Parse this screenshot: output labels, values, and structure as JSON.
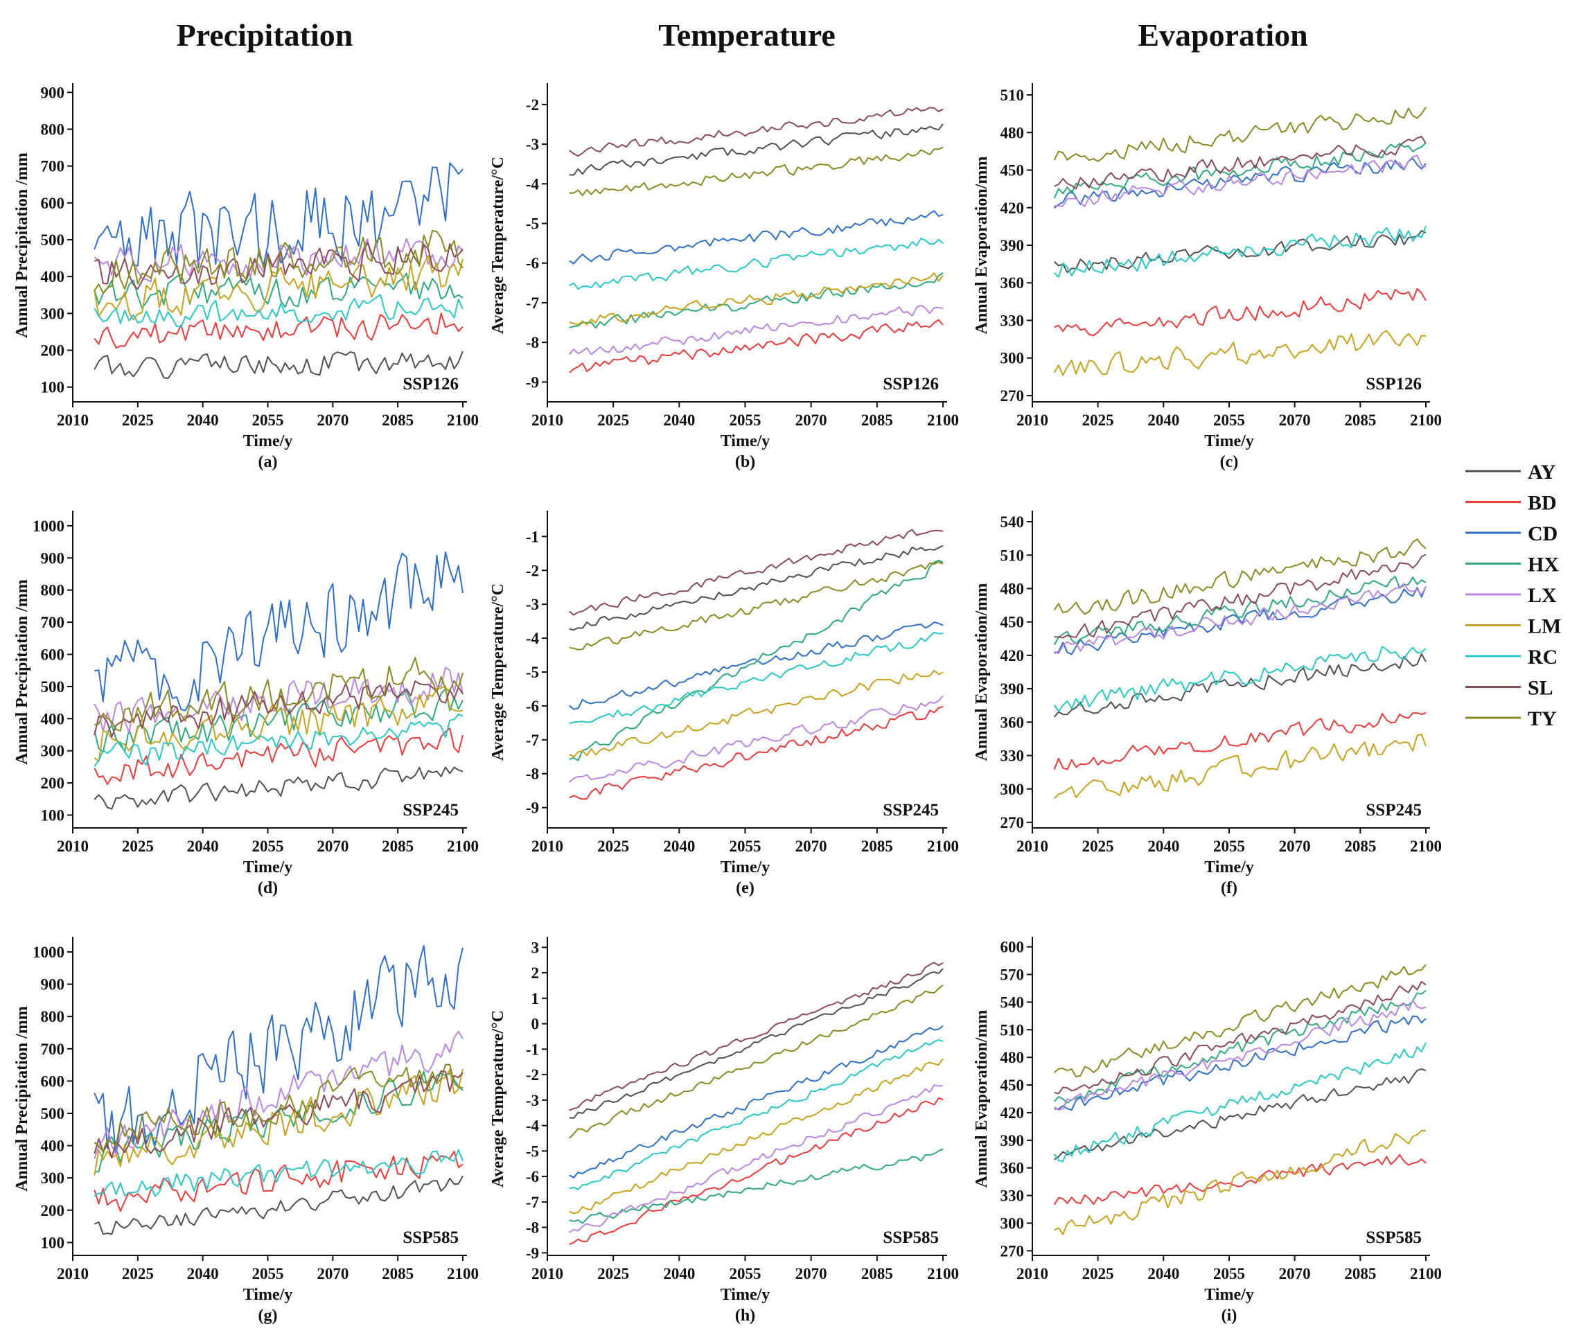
{
  "columns": [
    "Precipitation",
    "Temperature",
    "Evaporation"
  ],
  "legend": [
    {
      "code": "AY",
      "color": "#505050"
    },
    {
      "code": "BD",
      "color": "#ec3a3a"
    },
    {
      "code": "CD",
      "color": "#2f6fc8"
    },
    {
      "code": "HX",
      "color": "#2eaa7a"
    },
    {
      "code": "LX",
      "color": "#b987e3"
    },
    {
      "code": "LM",
      "color": "#c9a21d"
    },
    {
      "code": "RC",
      "color": "#28c8c8"
    },
    {
      "code": "SL",
      "color": "#8a4a56"
    },
    {
      "code": "TY",
      "color": "#8a8a22"
    }
  ],
  "chart_data": [
    {
      "id": "a",
      "type": "line",
      "scenario": "SSP126",
      "variable": "precipitation",
      "xlabel": "Time/y",
      "ylabel": "Annual Precipitation /mm",
      "xticks": [
        2010,
        2025,
        2040,
        2055,
        2070,
        2085,
        2100
      ],
      "yticks": [
        100,
        200,
        300,
        400,
        500,
        600,
        700,
        800,
        900
      ],
      "xlim": [
        2010,
        2100
      ],
      "ylim": [
        60,
        910
      ],
      "series": [
        {
          "name": "AY",
          "start": 150,
          "end": 170,
          "noise": 38,
          "seed": 1
        },
        {
          "name": "BD",
          "start": 230,
          "end": 280,
          "noise": 45,
          "seed": 2
        },
        {
          "name": "CD",
          "start": 450,
          "end": 620,
          "noise": 150,
          "seed": 3
        },
        {
          "name": "HX",
          "start": 350,
          "end": 380,
          "noise": 55,
          "seed": 4
        },
        {
          "name": "LX",
          "start": 430,
          "end": 460,
          "noise": 60,
          "seed": 5
        },
        {
          "name": "LM",
          "start": 330,
          "end": 410,
          "noise": 65,
          "seed": 6
        },
        {
          "name": "RC",
          "start": 290,
          "end": 320,
          "noise": 40,
          "seed": 7
        },
        {
          "name": "SL",
          "start": 400,
          "end": 460,
          "noise": 60,
          "seed": 8
        },
        {
          "name": "TY",
          "start": 410,
          "end": 480,
          "noise": 70,
          "seed": 9
        }
      ]
    },
    {
      "id": "b",
      "type": "line",
      "scenario": "SSP126",
      "variable": "temperature",
      "xlabel": "Time/y",
      "ylabel": "Average Temperature/°C",
      "xticks": [
        2010,
        2025,
        2040,
        2055,
        2070,
        2085,
        2100
      ],
      "yticks": [
        -9,
        -8,
        -7,
        -6,
        -5,
        -4,
        -3,
        -2
      ],
      "xlim": [
        2010,
        2100
      ],
      "ylim": [
        -9.5,
        -1.6
      ],
      "series": [
        {
          "name": "AY",
          "start": -3.7,
          "end": -2.55,
          "noise": 0.15,
          "seed": 11
        },
        {
          "name": "BD",
          "start": -8.7,
          "end": -7.5,
          "noise": 0.18,
          "seed": 12
        },
        {
          "name": "CD",
          "start": -5.9,
          "end": -4.8,
          "noise": 0.17,
          "seed": 13
        },
        {
          "name": "HX",
          "start": -7.6,
          "end": -6.4,
          "noise": 0.18,
          "seed": 14
        },
        {
          "name": "LX",
          "start": -8.3,
          "end": -7.1,
          "noise": 0.18,
          "seed": 15
        },
        {
          "name": "LM",
          "start": -7.5,
          "end": -6.35,
          "noise": 0.18,
          "seed": 16
        },
        {
          "name": "RC",
          "start": -6.6,
          "end": -5.4,
          "noise": 0.18,
          "seed": 17
        },
        {
          "name": "SL",
          "start": -3.2,
          "end": -2.1,
          "noise": 0.15,
          "seed": 18
        },
        {
          "name": "TY",
          "start": -4.3,
          "end": -3.2,
          "noise": 0.17,
          "seed": 19
        }
      ]
    },
    {
      "id": "c",
      "type": "line",
      "scenario": "SSP126",
      "variable": "evaporation",
      "xlabel": "Time/y",
      "ylabel": "Annual Evaporation/mm",
      "xticks": [
        2010,
        2025,
        2040,
        2055,
        2070,
        2085,
        2100
      ],
      "yticks": [
        270,
        300,
        330,
        360,
        390,
        420,
        450,
        480,
        510
      ],
      "xlim": [
        2010,
        2100
      ],
      "ylim": [
        265,
        515
      ],
      "series": [
        {
          "name": "AY",
          "start": 372,
          "end": 397,
          "noise": 8,
          "seed": 21
        },
        {
          "name": "BD",
          "start": 318,
          "end": 352,
          "noise": 9,
          "seed": 22
        },
        {
          "name": "CD",
          "start": 425,
          "end": 458,
          "noise": 8,
          "seed": 23
        },
        {
          "name": "HX",
          "start": 432,
          "end": 468,
          "noise": 8,
          "seed": 24
        },
        {
          "name": "LX",
          "start": 425,
          "end": 457,
          "noise": 8,
          "seed": 25
        },
        {
          "name": "LM",
          "start": 292,
          "end": 316,
          "noise": 11,
          "seed": 26
        },
        {
          "name": "RC",
          "start": 370,
          "end": 400,
          "noise": 9,
          "seed": 27
        },
        {
          "name": "SL",
          "start": 438,
          "end": 472,
          "noise": 8,
          "seed": 28
        },
        {
          "name": "TY",
          "start": 458,
          "end": 498,
          "noise": 9,
          "seed": 29
        }
      ]
    },
    {
      "id": "d",
      "type": "line",
      "scenario": "SSP245",
      "variable": "precipitation",
      "xlabel": "Time/y",
      "ylabel": "Annual Precipitation /mm",
      "xticks": [
        2010,
        2025,
        2040,
        2055,
        2070,
        2085,
        2100
      ],
      "yticks": [
        100,
        200,
        300,
        400,
        500,
        600,
        700,
        800,
        900,
        1000
      ],
      "xlim": [
        2010,
        2100
      ],
      "ylim": [
        60,
        1030
      ],
      "series": [
        {
          "name": "AY",
          "start": 140,
          "end": 235,
          "noise": 38,
          "seed": 31
        },
        {
          "name": "BD",
          "start": 230,
          "end": 330,
          "noise": 50,
          "seed": 32
        },
        {
          "name": "CD",
          "start": 480,
          "end": 840,
          "noise": 160,
          "seed": 33
        },
        {
          "name": "HX",
          "start": 330,
          "end": 450,
          "noise": 60,
          "seed": 34
        },
        {
          "name": "LX",
          "start": 400,
          "end": 520,
          "noise": 70,
          "seed": 35
        },
        {
          "name": "LM",
          "start": 330,
          "end": 440,
          "noise": 70,
          "seed": 36
        },
        {
          "name": "RC",
          "start": 280,
          "end": 380,
          "noise": 45,
          "seed": 37
        },
        {
          "name": "SL",
          "start": 380,
          "end": 510,
          "noise": 60,
          "seed": 38
        },
        {
          "name": "TY",
          "start": 410,
          "end": 550,
          "noise": 70,
          "seed": 39
        }
      ]
    },
    {
      "id": "e",
      "type": "line",
      "scenario": "SSP245",
      "variable": "temperature",
      "xlabel": "Time/y",
      "ylabel": "Average Temperature/°C",
      "xticks": [
        2010,
        2025,
        2040,
        2055,
        2070,
        2085,
        2100
      ],
      "yticks": [
        -9,
        -8,
        -7,
        -6,
        -5,
        -4,
        -3,
        -2,
        -1
      ],
      "xlim": [
        2010,
        2100
      ],
      "ylim": [
        -9.6,
        -0.4
      ],
      "series": [
        {
          "name": "AY",
          "start": -3.7,
          "end": -1.2,
          "noise": 0.16,
          "seed": 41
        },
        {
          "name": "BD",
          "start": -8.7,
          "end": -6.1,
          "noise": 0.2,
          "seed": 42
        },
        {
          "name": "CD",
          "start": -6.0,
          "end": -3.5,
          "noise": 0.18,
          "seed": 43
        },
        {
          "name": "HX",
          "start": -7.6,
          "end": -1.8,
          "noise": 0.2,
          "seed": 44
        },
        {
          "name": "LX",
          "start": -8.3,
          "end": -5.8,
          "noise": 0.2,
          "seed": 45
        },
        {
          "name": "LM",
          "start": -7.5,
          "end": -4.9,
          "noise": 0.2,
          "seed": 46
        },
        {
          "name": "RC",
          "start": -6.6,
          "end": -3.9,
          "noise": 0.18,
          "seed": 47
        },
        {
          "name": "SL",
          "start": -3.3,
          "end": -0.7,
          "noise": 0.16,
          "seed": 48
        },
        {
          "name": "TY",
          "start": -4.4,
          "end": -1.8,
          "noise": 0.18,
          "seed": 49
        }
      ]
    },
    {
      "id": "f",
      "type": "line",
      "scenario": "SSP245",
      "variable": "evaporation",
      "xlabel": "Time/y",
      "ylabel": "Annual Evaporation/mm",
      "xticks": [
        2010,
        2025,
        2040,
        2055,
        2070,
        2085,
        2100
      ],
      "yticks": [
        270,
        300,
        330,
        360,
        390,
        420,
        450,
        480,
        510,
        540
      ],
      "xlim": [
        2010,
        2100
      ],
      "ylim": [
        265,
        545
      ],
      "series": [
        {
          "name": "AY",
          "start": 370,
          "end": 418,
          "noise": 9,
          "seed": 51
        },
        {
          "name": "BD",
          "start": 322,
          "end": 368,
          "noise": 9,
          "seed": 52
        },
        {
          "name": "CD",
          "start": 425,
          "end": 478,
          "noise": 8,
          "seed": 53
        },
        {
          "name": "HX",
          "start": 432,
          "end": 488,
          "noise": 9,
          "seed": 54
        },
        {
          "name": "LX",
          "start": 425,
          "end": 480,
          "noise": 9,
          "seed": 55
        },
        {
          "name": "LM",
          "start": 292,
          "end": 345,
          "noise": 12,
          "seed": 56
        },
        {
          "name": "RC",
          "start": 375,
          "end": 428,
          "noise": 10,
          "seed": 57
        },
        {
          "name": "SL",
          "start": 435,
          "end": 505,
          "noise": 9,
          "seed": 58
        },
        {
          "name": "TY",
          "start": 458,
          "end": 520,
          "noise": 10,
          "seed": 59
        }
      ]
    },
    {
      "id": "g",
      "type": "line",
      "scenario": "SSP585",
      "variable": "precipitation",
      "xlabel": "Time/y",
      "ylabel": "Annual Precipitation /mm",
      "xticks": [
        2010,
        2025,
        2040,
        2055,
        2070,
        2085,
        2100
      ],
      "yticks": [
        100,
        200,
        300,
        400,
        500,
        600,
        700,
        800,
        900,
        1000
      ],
      "xlim": [
        2010,
        2100
      ],
      "ylim": [
        60,
        1030
      ],
      "series": [
        {
          "name": "AY",
          "start": 140,
          "end": 280,
          "noise": 35,
          "seed": 61
        },
        {
          "name": "BD",
          "start": 230,
          "end": 360,
          "noise": 55,
          "seed": 62
        },
        {
          "name": "CD",
          "start": 450,
          "end": 950,
          "noise": 160,
          "seed": 63
        },
        {
          "name": "HX",
          "start": 360,
          "end": 610,
          "noise": 60,
          "seed": 64
        },
        {
          "name": "LX",
          "start": 400,
          "end": 720,
          "noise": 70,
          "seed": 65
        },
        {
          "name": "LM",
          "start": 340,
          "end": 600,
          "noise": 70,
          "seed": 66
        },
        {
          "name": "RC",
          "start": 260,
          "end": 360,
          "noise": 45,
          "seed": 67
        },
        {
          "name": "SL",
          "start": 390,
          "end": 610,
          "noise": 60,
          "seed": 68
        },
        {
          "name": "TY",
          "start": 420,
          "end": 640,
          "noise": 70,
          "seed": 69
        }
      ]
    },
    {
      "id": "h",
      "type": "line",
      "scenario": "SSP585",
      "variable": "temperature",
      "xlabel": "Time/y",
      "ylabel": "Average Temperature/°C",
      "xticks": [
        2010,
        2025,
        2040,
        2055,
        2070,
        2085,
        2100
      ],
      "yticks": [
        -9,
        -8,
        -7,
        -6,
        -5,
        -4,
        -3,
        -2,
        -1,
        0,
        1,
        2,
        3
      ],
      "xlim": [
        2010,
        2100
      ],
      "ylim": [
        -9.1,
        3.2
      ],
      "series": [
        {
          "name": "AY",
          "start": -3.7,
          "end": 2.1,
          "noise": 0.16,
          "seed": 71
        },
        {
          "name": "BD",
          "start": -8.7,
          "end": -2.9,
          "noise": 0.2,
          "seed": 72
        },
        {
          "name": "CD",
          "start": -6.0,
          "end": -0.1,
          "noise": 0.18,
          "seed": 73
        },
        {
          "name": "HX",
          "start": -7.8,
          "end": -5.1,
          "noise": 0.2,
          "seed": 74
        },
        {
          "name": "LX",
          "start": -8.3,
          "end": -2.4,
          "noise": 0.2,
          "seed": 75
        },
        {
          "name": "LM",
          "start": -7.5,
          "end": -1.4,
          "noise": 0.2,
          "seed": 76
        },
        {
          "name": "RC",
          "start": -6.6,
          "end": -0.6,
          "noise": 0.18,
          "seed": 77
        },
        {
          "name": "SL",
          "start": -3.3,
          "end": 2.4,
          "noise": 0.16,
          "seed": 78
        },
        {
          "name": "TY",
          "start": -4.4,
          "end": 1.4,
          "noise": 0.18,
          "seed": 79
        }
      ]
    },
    {
      "id": "i",
      "type": "line",
      "scenario": "SSP585",
      "variable": "evaporation",
      "xlabel": "Time/y",
      "ylabel": "Annual Evaporation/mm",
      "xticks": [
        2010,
        2025,
        2040,
        2055,
        2070,
        2085,
        2100
      ],
      "yticks": [
        270,
        300,
        330,
        360,
        390,
        420,
        450,
        480,
        510,
        540,
        570,
        600
      ],
      "xlim": [
        2010,
        2100
      ],
      "ylim": [
        265,
        605
      ],
      "series": [
        {
          "name": "AY",
          "start": 372,
          "end": 462,
          "noise": 9,
          "seed": 81
        },
        {
          "name": "BD",
          "start": 322,
          "end": 372,
          "noise": 9,
          "seed": 82
        },
        {
          "name": "CD",
          "start": 425,
          "end": 525,
          "noise": 9,
          "seed": 83
        },
        {
          "name": "HX",
          "start": 432,
          "end": 548,
          "noise": 9,
          "seed": 84
        },
        {
          "name": "LX",
          "start": 425,
          "end": 540,
          "noise": 9,
          "seed": 85
        },
        {
          "name": "LM",
          "start": 290,
          "end": 398,
          "noise": 12,
          "seed": 86
        },
        {
          "name": "RC",
          "start": 372,
          "end": 490,
          "noise": 10,
          "seed": 87
        },
        {
          "name": "SL",
          "start": 438,
          "end": 560,
          "noise": 9,
          "seed": 88
        },
        {
          "name": "TY",
          "start": 458,
          "end": 578,
          "noise": 10,
          "seed": 89
        }
      ]
    }
  ]
}
